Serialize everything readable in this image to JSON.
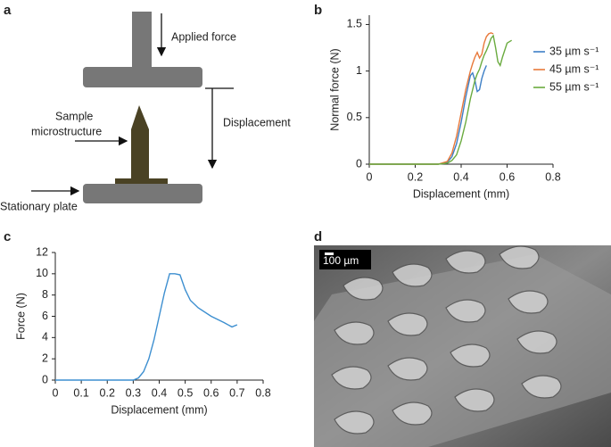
{
  "panels": {
    "labels": [
      "a",
      "b",
      "c",
      "d"
    ]
  },
  "diagram": {
    "applied_force": "Applied force",
    "displacement": "Displacement",
    "sample": [
      "Sample",
      "microstructure"
    ],
    "stationary": "Stationary plate"
  },
  "micrograph": {
    "scale_bar": "100 µm"
  },
  "chart_data": [
    {
      "type": "line",
      "xlabel": "Displacement (mm)",
      "ylabel": "Normal force (N)",
      "xlim": [
        0,
        0.8
      ],
      "xticks": [
        0,
        0.2,
        0.4,
        0.6,
        0.8
      ],
      "ylim": [
        0,
        1.6
      ],
      "yticks": [
        0,
        0.5,
        1,
        1.5
      ],
      "legend": "right",
      "x": [
        0,
        0.1,
        0.2,
        0.3,
        0.34,
        0.36,
        0.38,
        0.4,
        0.42,
        0.44,
        0.45,
        0.46,
        0.47,
        0.48,
        0.49,
        0.5,
        0.51,
        0.52,
        0.53,
        0.54,
        0.55,
        0.56,
        0.57,
        0.58,
        0.6,
        0.62
      ],
      "series": [
        {
          "name": "35 µm s⁻¹",
          "color": "#3d7fc6",
          "values": [
            0,
            0,
            0,
            0,
            0.02,
            0.08,
            0.22,
            0.45,
            0.72,
            0.95,
            0.98,
            0.9,
            0.78,
            0.8,
            0.92,
            1.0,
            1.06,
            null,
            null,
            null,
            null,
            null,
            null,
            null,
            null,
            null
          ]
        },
        {
          "name": "45 µm s⁻¹",
          "color": "#e8793b",
          "values": [
            0,
            0,
            0,
            0,
            0.03,
            0.12,
            0.3,
            0.55,
            0.8,
            1.0,
            1.08,
            1.15,
            1.2,
            1.14,
            1.18,
            1.3,
            1.37,
            1.4,
            1.41,
            1.4,
            null,
            null,
            null,
            null,
            null,
            null
          ]
        },
        {
          "name": "55 µm s⁻¹",
          "color": "#6aab3f",
          "values": [
            0,
            0,
            0,
            0,
            0.01,
            0.04,
            0.1,
            0.25,
            0.45,
            0.7,
            0.8,
            0.9,
            0.97,
            1.02,
            1.1,
            1.17,
            1.22,
            1.28,
            1.35,
            1.38,
            1.25,
            1.1,
            1.06,
            1.15,
            1.3,
            1.33
          ]
        }
      ]
    },
    {
      "type": "line",
      "xlabel": "Displacement (mm)",
      "ylabel": "Force (N)",
      "xlim": [
        0,
        0.8
      ],
      "xticks": [
        0,
        0.1,
        0.2,
        0.3,
        0.4,
        0.5,
        0.6,
        0.7,
        0.8
      ],
      "ylim": [
        0,
        12
      ],
      "yticks": [
        0,
        2,
        4,
        6,
        8,
        10,
        12
      ],
      "x": [
        0,
        0.1,
        0.2,
        0.3,
        0.32,
        0.34,
        0.36,
        0.38,
        0.4,
        0.42,
        0.44,
        0.46,
        0.48,
        0.5,
        0.52,
        0.55,
        0.6,
        0.65,
        0.68,
        0.7
      ],
      "series": [
        {
          "color": "#3d8fd0",
          "values": [
            0,
            0,
            0,
            0,
            0.2,
            0.8,
            2,
            3.8,
            6,
            8.2,
            10,
            10,
            9.9,
            8.5,
            7.5,
            6.8,
            6,
            5.4,
            5,
            5.2
          ]
        }
      ]
    }
  ]
}
